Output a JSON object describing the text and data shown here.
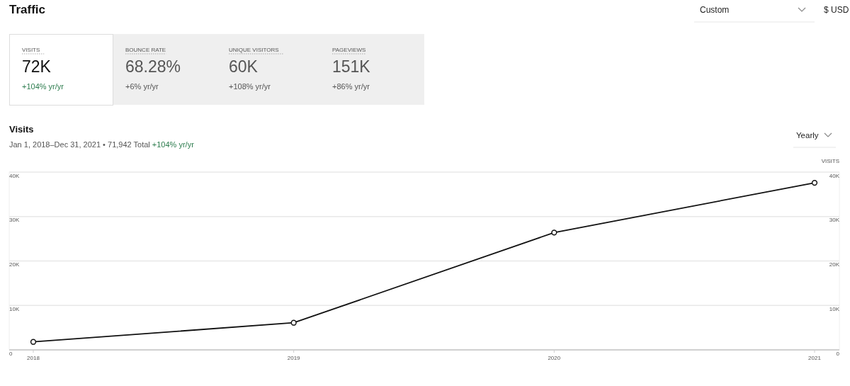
{
  "chart_data": [
    {
      "type": "other",
      "title": "Traffic",
      "annotations": [
        "Custom",
        "$ USD",
        "VISITS",
        "72K",
        "+104% yr/yr",
        "BOUNCE RATE",
        "68.28%",
        "+6% yr/yr",
        "UNIQUE VISITORS",
        "60K",
        "+108% yr/yr",
        "PAGEVIEWS",
        "151K",
        "+86% yr/yr"
      ]
    },
    {
      "type": "line",
      "title": "Visits",
      "subtitle": "Jan 1, 2018–Dec 31, 2021 • 71,942 Total",
      "annotations": [
        "+104% yr/yr",
        "Yearly"
      ],
      "categories": [
        "2018",
        "2019",
        "2020",
        "2021"
      ],
      "series": [
        {
          "color": "#111111",
          "values": [
            1800,
            6100,
            26400,
            37600
          ]
        }
      ],
      "ylim": [
        0,
        40000
      ],
      "yticks": [
        0,
        {
          "value": 10000,
          "label": "10K"
        },
        {
          "value": 20000,
          "label": "20K"
        },
        {
          "value": 30000,
          "label": "30K"
        },
        {
          "value": 40000,
          "label": "40K"
        }
      ],
      "y2lim": [
        0,
        40000
      ],
      "y2ticks": [
        0,
        {
          "value": 10000,
          "label": "10K"
        },
        {
          "value": 20000,
          "label": "20K"
        },
        {
          "value": 30000,
          "label": "30K"
        },
        {
          "value": 40000,
          "label": "40K"
        }
      ],
      "y2label": "VISITS",
      "grid": "y",
      "marker": "circle"
    }
  ]
}
